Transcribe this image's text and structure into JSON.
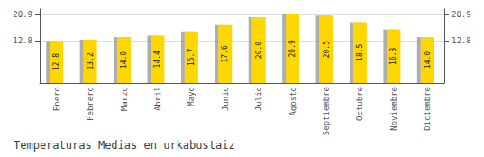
{
  "chart_data": {
    "type": "bar",
    "title": "Temperaturas Medias en urkabustaiz",
    "categories": [
      "Enero",
      "Febrero",
      "Marzo",
      "Abril",
      "Mayo",
      "Junio",
      "Julio",
      "Agosto",
      "Septiembre",
      "Octubre",
      "Noviembre",
      "Diciembre"
    ],
    "values": [
      12.8,
      13.2,
      14.0,
      14.4,
      15.7,
      17.6,
      20.0,
      20.9,
      20.5,
      18.5,
      16.3,
      14.0
    ],
    "value_labels": [
      "12.8",
      "13.2",
      "14.0",
      "14.4",
      "15.7",
      "17.6",
      "20.0",
      "20.9",
      "20.5",
      "18.5",
      "16.3",
      "14.0"
    ],
    "color": "#FFD700",
    "ylim": [
      0,
      22.5
    ],
    "yticks": [
      12.8,
      20.9
    ],
    "y2lim": [
      0,
      22.5
    ],
    "y2ticks": [
      12.8,
      20.9
    ],
    "grid": true,
    "data_labels": true
  }
}
